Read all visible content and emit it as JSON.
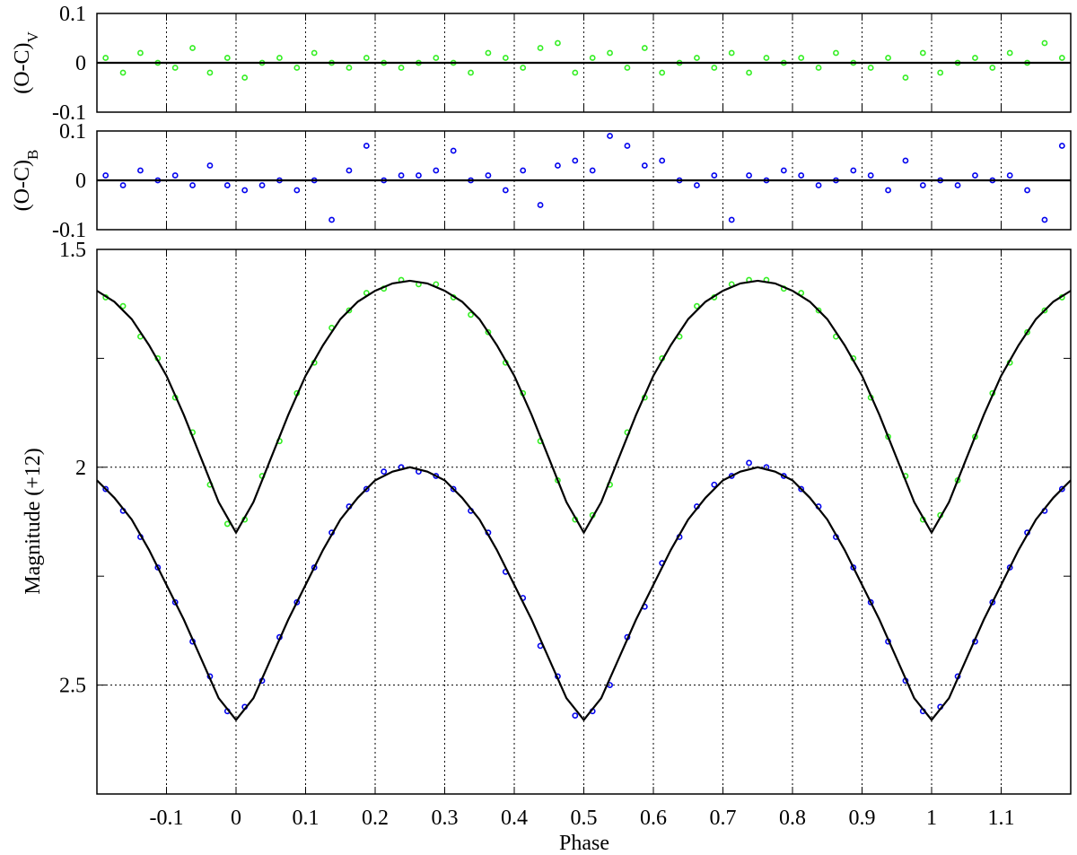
{
  "chart_data": [
    {
      "type": "scatter",
      "ylabel": "(O-C)",
      "ylabel_sub": "V",
      "xlim": [
        -0.2,
        1.2
      ],
      "ylim": [
        -0.1,
        0.1
      ],
      "yticks": [
        -0.1,
        0,
        0.1
      ],
      "xticks": [
        -0.1,
        0,
        0.1,
        0.2,
        0.3,
        0.4,
        0.5,
        0.6,
        0.7,
        0.8,
        0.9,
        1,
        1.1
      ],
      "grid": "x",
      "series": [
        {
          "color": "#33ee22",
          "style": "markers",
          "x": [
            -0.1875,
            -0.1625,
            -0.1375,
            -0.1125,
            -0.0875,
            -0.0625,
            -0.0375,
            -0.0125,
            0.0125,
            0.0375,
            0.0625,
            0.0875,
            0.1125,
            0.1375,
            0.1625,
            0.1875,
            0.2125,
            0.2375,
            0.2625,
            0.2875,
            0.3125,
            0.3375,
            0.3625,
            0.3875,
            0.4125,
            0.4375,
            0.4625,
            0.4875,
            0.5125,
            0.5375,
            0.5625,
            0.5875,
            0.6125,
            0.6375,
            0.6625,
            0.6875,
            0.7125,
            0.7375,
            0.7625,
            0.7875,
            0.8125,
            0.8375,
            0.8625,
            0.8875,
            0.9125,
            0.9375,
            0.9625,
            0.9875,
            1.0125,
            1.0375,
            1.0625,
            1.0875,
            1.1125,
            1.1375,
            1.1625,
            1.1875
          ],
          "values": [
            0.01,
            -0.02,
            0.02,
            0.0,
            -0.01,
            0.03,
            -0.02,
            0.01,
            -0.03,
            0.0,
            0.01,
            -0.01,
            0.02,
            0.0,
            -0.01,
            0.01,
            0.0,
            -0.01,
            0.0,
            0.01,
            0.0,
            -0.02,
            0.02,
            0.01,
            -0.01,
            0.03,
            0.04,
            -0.02,
            0.01,
            0.02,
            -0.01,
            0.03,
            -0.02,
            0.0,
            0.01,
            -0.01,
            0.02,
            -0.02,
            0.01,
            0.0,
            0.01,
            -0.01,
            0.02,
            0.0,
            -0.01,
            0.01,
            -0.03,
            0.02,
            -0.02,
            0.0,
            0.01,
            -0.01,
            0.02,
            0.0,
            0.04,
            0.01
          ]
        },
        {
          "color": "#000000",
          "style": "line",
          "x": [
            -0.2,
            1.2
          ],
          "values": [
            0,
            0
          ]
        }
      ]
    },
    {
      "type": "scatter",
      "ylabel": "(O-C)",
      "ylabel_sub": "B",
      "xlim": [
        -0.2,
        1.2
      ],
      "ylim": [
        -0.1,
        0.1
      ],
      "yticks": [
        -0.1,
        0,
        0.1
      ],
      "xticks": [
        -0.1,
        0,
        0.1,
        0.2,
        0.3,
        0.4,
        0.5,
        0.6,
        0.7,
        0.8,
        0.9,
        1,
        1.1
      ],
      "grid": "x",
      "series": [
        {
          "color": "#0000ee",
          "style": "markers",
          "x": [
            -0.1875,
            -0.1625,
            -0.1375,
            -0.1125,
            -0.0875,
            -0.0625,
            -0.0375,
            -0.0125,
            0.0125,
            0.0375,
            0.0625,
            0.0875,
            0.1125,
            0.1375,
            0.1625,
            0.1875,
            0.2125,
            0.2375,
            0.2625,
            0.2875,
            0.3125,
            0.3375,
            0.3625,
            0.3875,
            0.4125,
            0.4375,
            0.4625,
            0.4875,
            0.5125,
            0.5375,
            0.5625,
            0.5875,
            0.6125,
            0.6375,
            0.6625,
            0.6875,
            0.7125,
            0.7375,
            0.7625,
            0.7875,
            0.8125,
            0.8375,
            0.8625,
            0.8875,
            0.9125,
            0.9375,
            0.9625,
            0.9875,
            1.0125,
            1.0375,
            1.0625,
            1.0875,
            1.1125,
            1.1375,
            1.1625,
            1.1875
          ],
          "values": [
            0.01,
            -0.01,
            0.02,
            0.0,
            0.01,
            -0.01,
            0.03,
            -0.01,
            -0.02,
            -0.01,
            0.0,
            -0.02,
            0.0,
            -0.08,
            0.02,
            0.07,
            0.0,
            0.01,
            0.01,
            0.02,
            0.06,
            0.0,
            0.01,
            -0.02,
            0.02,
            -0.05,
            0.03,
            0.04,
            0.02,
            0.09,
            0.07,
            0.03,
            0.04,
            0.0,
            -0.01,
            0.01,
            -0.08,
            0.01,
            0.0,
            0.02,
            0.01,
            -0.01,
            0.0,
            0.02,
            0.01,
            -0.02,
            0.04,
            -0.01,
            0.0,
            -0.01,
            0.01,
            0.0,
            0.01,
            -0.02,
            -0.08,
            0.07
          ]
        },
        {
          "color": "#000000",
          "style": "line",
          "x": [
            -0.2,
            1.2
          ],
          "values": [
            0,
            0
          ]
        }
      ]
    },
    {
      "type": "scatter",
      "ylabel": "Magnitude (+12)",
      "xlabel": "Phase",
      "xlim": [
        -0.2,
        1.2
      ],
      "ylim": [
        2.75,
        1.5
      ],
      "yticks": [
        1.5,
        2,
        2.5
      ],
      "yminorticks": [
        1.75,
        2.25,
        2.75
      ],
      "xticks": [
        -0.1,
        0,
        0.1,
        0.2,
        0.3,
        0.4,
        0.5,
        0.6,
        0.7,
        0.8,
        0.9,
        1,
        1.1
      ],
      "grid": "both",
      "series": [
        {
          "color": "#33ee22",
          "style": "markers",
          "x": [
            -0.1875,
            -0.1625,
            -0.1375,
            -0.1125,
            -0.0875,
            -0.0625,
            -0.0375,
            -0.0125,
            0.0125,
            0.0375,
            0.0625,
            0.0875,
            0.1125,
            0.1375,
            0.1625,
            0.1875,
            0.2125,
            0.2375,
            0.2625,
            0.2875,
            0.3125,
            0.3375,
            0.3625,
            0.3875,
            0.4125,
            0.4375,
            0.4625,
            0.4875,
            0.5125,
            0.5375,
            0.5625,
            0.5875,
            0.6125,
            0.6375,
            0.6625,
            0.6875,
            0.7125,
            0.7375,
            0.7625,
            0.7875,
            0.8125,
            0.8375,
            0.8625,
            0.8875,
            0.9125,
            0.9375,
            0.9625,
            0.9875,
            1.0125,
            1.0375,
            1.0625,
            1.0875,
            1.1125,
            1.1375,
            1.1625,
            1.1875
          ],
          "values": [
            1.61,
            1.63,
            1.7,
            1.75,
            1.84,
            1.92,
            2.04,
            2.13,
            2.12,
            2.02,
            1.94,
            1.83,
            1.76,
            1.68,
            1.64,
            1.6,
            1.59,
            1.57,
            1.58,
            1.58,
            1.61,
            1.65,
            1.69,
            1.76,
            1.83,
            1.94,
            2.03,
            2.12,
            2.11,
            2.04,
            1.92,
            1.84,
            1.75,
            1.7,
            1.63,
            1.61,
            1.58,
            1.57,
            1.57,
            1.59,
            1.6,
            1.64,
            1.7,
            1.75,
            1.84,
            1.93,
            2.02,
            2.12,
            2.11,
            2.03,
            1.93,
            1.83,
            1.76,
            1.69,
            1.64,
            1.61
          ]
        },
        {
          "color": "#0000ee",
          "style": "markers",
          "x": [
            -0.1875,
            -0.1625,
            -0.1375,
            -0.1125,
            -0.0875,
            -0.0625,
            -0.0375,
            -0.0125,
            0.0125,
            0.0375,
            0.0625,
            0.0875,
            0.1125,
            0.1375,
            0.1625,
            0.1875,
            0.2125,
            0.2375,
            0.2625,
            0.2875,
            0.3125,
            0.3375,
            0.3625,
            0.3875,
            0.4125,
            0.4375,
            0.4625,
            0.4875,
            0.5125,
            0.5375,
            0.5625,
            0.5875,
            0.6125,
            0.6375,
            0.6625,
            0.6875,
            0.7125,
            0.7375,
            0.7625,
            0.7875,
            0.8125,
            0.8375,
            0.8625,
            0.8875,
            0.9125,
            0.9375,
            0.9625,
            0.9875,
            1.0125,
            1.0375,
            1.0625,
            1.0875,
            1.1125,
            1.1375,
            1.1625,
            1.1875
          ],
          "values": [
            2.05,
            2.1,
            2.16,
            2.23,
            2.31,
            2.4,
            2.48,
            2.56,
            2.55,
            2.49,
            2.39,
            2.31,
            2.23,
            2.15,
            2.09,
            2.05,
            2.01,
            2.0,
            2.01,
            2.02,
            2.05,
            2.1,
            2.15,
            2.24,
            2.3,
            2.41,
            2.48,
            2.57,
            2.56,
            2.5,
            2.39,
            2.32,
            2.22,
            2.16,
            2.09,
            2.04,
            2.02,
            1.99,
            2.0,
            2.02,
            2.05,
            2.09,
            2.16,
            2.23,
            2.31,
            2.4,
            2.49,
            2.56,
            2.55,
            2.48,
            2.4,
            2.31,
            2.23,
            2.15,
            2.1,
            2.05
          ]
        },
        {
          "color": "#000000",
          "style": "line",
          "x": [
            -0.2,
            -0.175,
            -0.15,
            -0.125,
            -0.1,
            -0.075,
            -0.05,
            -0.025,
            0,
            0.025,
            0.05,
            0.075,
            0.1,
            0.125,
            0.15,
            0.175,
            0.2,
            0.225,
            0.25,
            0.275,
            0.3,
            0.325,
            0.35,
            0.375,
            0.4,
            0.425,
            0.45,
            0.475,
            0.5,
            0.525,
            0.55,
            0.575,
            0.6,
            0.625,
            0.65,
            0.675,
            0.7,
            0.725,
            0.75,
            0.775,
            0.8,
            0.825,
            0.85,
            0.875,
            0.9,
            0.925,
            0.95,
            0.975,
            1,
            1.025,
            1.05,
            1.075,
            1.1,
            1.125,
            1.15,
            1.175,
            1.2
          ],
          "values": [
            1.595,
            1.62,
            1.66,
            1.72,
            1.79,
            1.88,
            1.98,
            2.08,
            2.15,
            2.08,
            1.98,
            1.88,
            1.79,
            1.72,
            1.66,
            1.62,
            1.595,
            1.578,
            1.572,
            1.578,
            1.595,
            1.62,
            1.66,
            1.72,
            1.79,
            1.88,
            1.98,
            2.08,
            2.15,
            2.08,
            1.98,
            1.88,
            1.79,
            1.72,
            1.66,
            1.62,
            1.595,
            1.578,
            1.572,
            1.578,
            1.595,
            1.62,
            1.66,
            1.72,
            1.79,
            1.88,
            1.98,
            2.08,
            2.15,
            2.08,
            1.98,
            1.88,
            1.79,
            1.72,
            1.66,
            1.62,
            1.595
          ]
        },
        {
          "color": "#000000",
          "style": "line",
          "x": [
            -0.2,
            -0.175,
            -0.15,
            -0.125,
            -0.1,
            -0.075,
            -0.05,
            -0.025,
            0,
            0.025,
            0.05,
            0.075,
            0.1,
            0.125,
            0.15,
            0.175,
            0.2,
            0.225,
            0.25,
            0.275,
            0.3,
            0.325,
            0.35,
            0.375,
            0.4,
            0.425,
            0.45,
            0.475,
            0.5,
            0.525,
            0.55,
            0.575,
            0.6,
            0.625,
            0.65,
            0.675,
            0.7,
            0.725,
            0.75,
            0.775,
            0.8,
            0.825,
            0.85,
            0.875,
            0.9,
            0.925,
            0.95,
            0.975,
            1,
            1.025,
            1.05,
            1.075,
            1.1,
            1.125,
            1.15,
            1.175,
            1.2
          ],
          "values": [
            2.03,
            2.07,
            2.12,
            2.19,
            2.27,
            2.35,
            2.44,
            2.53,
            2.58,
            2.53,
            2.44,
            2.35,
            2.27,
            2.19,
            2.12,
            2.07,
            2.03,
            2.01,
            2.0,
            2.01,
            2.03,
            2.07,
            2.12,
            2.19,
            2.27,
            2.35,
            2.44,
            2.53,
            2.58,
            2.53,
            2.44,
            2.35,
            2.27,
            2.19,
            2.12,
            2.07,
            2.03,
            2.01,
            2.0,
            2.01,
            2.03,
            2.07,
            2.12,
            2.19,
            2.27,
            2.35,
            2.44,
            2.53,
            2.58,
            2.53,
            2.44,
            2.35,
            2.27,
            2.19,
            2.12,
            2.07,
            2.03
          ]
        }
      ]
    }
  ]
}
